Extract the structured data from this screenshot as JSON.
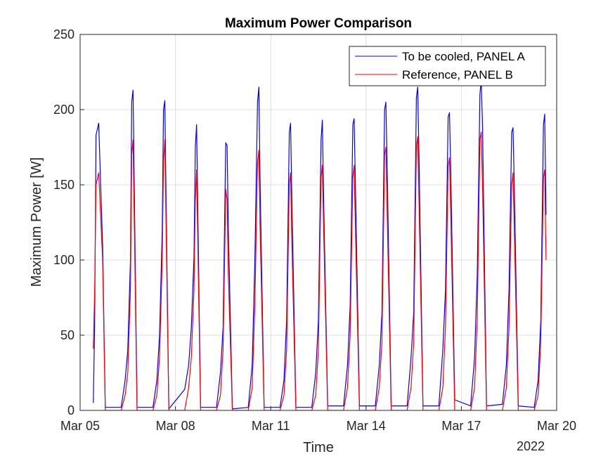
{
  "chart_data": {
    "type": "line",
    "title": "Maximum Power Comparison",
    "xlabel": "Time",
    "ylabel": "Maximum Power [W]",
    "x_axis_year": "2022",
    "xlim": [
      "2022-03-05",
      "2022-03-20"
    ],
    "ylim": [
      0,
      250
    ],
    "x_ticks": [
      {
        "date": "2022-03-05",
        "label": "Mar 05"
      },
      {
        "date": "2022-03-08",
        "label": "Mar 08"
      },
      {
        "date": "2022-03-11",
        "label": "Mar 11"
      },
      {
        "date": "2022-03-14",
        "label": "Mar 14"
      },
      {
        "date": "2022-03-17",
        "label": "Mar 17"
      },
      {
        "date": "2022-03-20",
        "label": "Mar 20"
      }
    ],
    "y_ticks": [
      0,
      50,
      100,
      150,
      200,
      250
    ],
    "grid": true,
    "legend_position": "top-right",
    "series": [
      {
        "name": "To be cooled, PANEL A",
        "color": "#0000ff",
        "points": [
          [
            "2022-03-05 10:00",
            5
          ],
          [
            "2022-03-05 11:00",
            60
          ],
          [
            "2022-03-05 12:00",
            183
          ],
          [
            "2022-03-05 14:00",
            191
          ],
          [
            "2022-03-05 17:00",
            110
          ],
          [
            "2022-03-05 19:00",
            2
          ],
          [
            "2022-03-06 07:00",
            2
          ],
          [
            "2022-03-06 10:00",
            20
          ],
          [
            "2022-03-06 12:00",
            40
          ],
          [
            "2022-03-06 14:00",
            100
          ],
          [
            "2022-03-06 15:00",
            205
          ],
          [
            "2022-03-06 16:00",
            213
          ],
          [
            "2022-03-06 19:00",
            2
          ],
          [
            "2022-03-07 07:00",
            2
          ],
          [
            "2022-03-07 10:00",
            20
          ],
          [
            "2022-03-07 12:00",
            50
          ],
          [
            "2022-03-07 14:00",
            120
          ],
          [
            "2022-03-07 15:00",
            200
          ],
          [
            "2022-03-07 16:00",
            206
          ],
          [
            "2022-03-07 19:00",
            1
          ],
          [
            "2022-03-08 07:00",
            14
          ],
          [
            "2022-03-08 10:00",
            30
          ],
          [
            "2022-03-08 12:00",
            55
          ],
          [
            "2022-03-08 14:00",
            102
          ],
          [
            "2022-03-08 15:00",
            175
          ],
          [
            "2022-03-08 16:00",
            190
          ],
          [
            "2022-03-08 19:00",
            2
          ],
          [
            "2022-03-09 07:00",
            2
          ],
          [
            "2022-03-09 10:00",
            25
          ],
          [
            "2022-03-09 12:00",
            55
          ],
          [
            "2022-03-09 14:00",
            178
          ],
          [
            "2022-03-09 15:00",
            176
          ],
          [
            "2022-03-09 16:00",
            120
          ],
          [
            "2022-03-09 19:00",
            1
          ],
          [
            "2022-03-10 07:00",
            2
          ],
          [
            "2022-03-10 10:00",
            30
          ],
          [
            "2022-03-10 12:00",
            100
          ],
          [
            "2022-03-10 14:00",
            205
          ],
          [
            "2022-03-10 15:00",
            215
          ],
          [
            "2022-03-10 16:00",
            150
          ],
          [
            "2022-03-10 19:00",
            2
          ],
          [
            "2022-03-11 07:00",
            2
          ],
          [
            "2022-03-11 10:00",
            20
          ],
          [
            "2022-03-11 12:00",
            60
          ],
          [
            "2022-03-11 14:00",
            185
          ],
          [
            "2022-03-11 15:00",
            191
          ],
          [
            "2022-03-11 16:00",
            140
          ],
          [
            "2022-03-11 19:00",
            2
          ],
          [
            "2022-03-12 07:00",
            2
          ],
          [
            "2022-03-12 10:00",
            25
          ],
          [
            "2022-03-12 12:00",
            60
          ],
          [
            "2022-03-12 14:00",
            180
          ],
          [
            "2022-03-12 15:00",
            193
          ],
          [
            "2022-03-12 16:00",
            140
          ],
          [
            "2022-03-12 19:00",
            3
          ],
          [
            "2022-03-13 07:00",
            3
          ],
          [
            "2022-03-13 10:00",
            30
          ],
          [
            "2022-03-13 12:00",
            70
          ],
          [
            "2022-03-13 14:00",
            190
          ],
          [
            "2022-03-13 15:00",
            194
          ],
          [
            "2022-03-13 16:00",
            150
          ],
          [
            "2022-03-13 19:00",
            3
          ],
          [
            "2022-03-14 07:00",
            3
          ],
          [
            "2022-03-14 10:00",
            30
          ],
          [
            "2022-03-14 12:00",
            65
          ],
          [
            "2022-03-14 14:00",
            200
          ],
          [
            "2022-03-14 15:00",
            205
          ],
          [
            "2022-03-14 16:00",
            160
          ],
          [
            "2022-03-14 19:00",
            3
          ],
          [
            "2022-03-15 07:00",
            3
          ],
          [
            "2022-03-15 10:00",
            35
          ],
          [
            "2022-03-15 12:00",
            65
          ],
          [
            "2022-03-15 14:00",
            208
          ],
          [
            "2022-03-15 15:00",
            215
          ],
          [
            "2022-03-15 16:00",
            170
          ],
          [
            "2022-03-15 19:00",
            3
          ],
          [
            "2022-03-16 07:00",
            3
          ],
          [
            "2022-03-16 10:00",
            40
          ],
          [
            "2022-03-16 12:00",
            80
          ],
          [
            "2022-03-16 14:00",
            195
          ],
          [
            "2022-03-16 15:00",
            198
          ],
          [
            "2022-03-16 16:00",
            160
          ],
          [
            "2022-03-16 19:00",
            7
          ],
          [
            "2022-03-17 07:00",
            3
          ],
          [
            "2022-03-17 10:00",
            35
          ],
          [
            "2022-03-17 12:00",
            90
          ],
          [
            "2022-03-17 14:00",
            210
          ],
          [
            "2022-03-17 15:00",
            220
          ],
          [
            "2022-03-17 16:00",
            190
          ],
          [
            "2022-03-17 19:00",
            3
          ],
          [
            "2022-03-18 07:00",
            4
          ],
          [
            "2022-03-18 10:00",
            30
          ],
          [
            "2022-03-18 12:00",
            80
          ],
          [
            "2022-03-18 14:00",
            185
          ],
          [
            "2022-03-18 15:00",
            188
          ],
          [
            "2022-03-18 16:00",
            150
          ],
          [
            "2022-03-18 19:00",
            3
          ],
          [
            "2022-03-19 07:00",
            2
          ],
          [
            "2022-03-19 10:00",
            20
          ],
          [
            "2022-03-19 12:00",
            60
          ],
          [
            "2022-03-19 14:00",
            190
          ],
          [
            "2022-03-19 15:00",
            197
          ],
          [
            "2022-03-19 16:00",
            130
          ]
        ]
      },
      {
        "name": "Reference, PANEL B",
        "color": "#ff0000",
        "points": [
          [
            "2022-03-05 10:00",
            41
          ],
          [
            "2022-03-05 11:00",
            80
          ],
          [
            "2022-03-05 12:00",
            150
          ],
          [
            "2022-03-05 14:00",
            158
          ],
          [
            "2022-03-05 17:00",
            100
          ],
          [
            "2022-03-05 19:00",
            0
          ],
          [
            "2022-03-06 07:00",
            0
          ],
          [
            "2022-03-06 10:00",
            10
          ],
          [
            "2022-03-06 12:00",
            25
          ],
          [
            "2022-03-06 14:00",
            80
          ],
          [
            "2022-03-06 15:00",
            170
          ],
          [
            "2022-03-06 16:00",
            180
          ],
          [
            "2022-03-06 19:00",
            0
          ],
          [
            "2022-03-07 07:00",
            0
          ],
          [
            "2022-03-07 10:00",
            10
          ],
          [
            "2022-03-07 12:00",
            35
          ],
          [
            "2022-03-07 14:00",
            100
          ],
          [
            "2022-03-07 15:00",
            165
          ],
          [
            "2022-03-07 16:00",
            180
          ],
          [
            "2022-03-07 19:00",
            0
          ],
          [
            "2022-03-08 07:00",
            0
          ],
          [
            "2022-03-08 10:00",
            15
          ],
          [
            "2022-03-08 12:00",
            35
          ],
          [
            "2022-03-08 14:00",
            80
          ],
          [
            "2022-03-08 15:00",
            140
          ],
          [
            "2022-03-08 16:00",
            160
          ],
          [
            "2022-03-08 19:00",
            0
          ],
          [
            "2022-03-09 07:00",
            0
          ],
          [
            "2022-03-09 10:00",
            10
          ],
          [
            "2022-03-09 12:00",
            40
          ],
          [
            "2022-03-09 14:00",
            147
          ],
          [
            "2022-03-09 15:00",
            140
          ],
          [
            "2022-03-09 16:00",
            90
          ],
          [
            "2022-03-09 19:00",
            0
          ],
          [
            "2022-03-10 07:00",
            0
          ],
          [
            "2022-03-10 10:00",
            15
          ],
          [
            "2022-03-10 12:00",
            70
          ],
          [
            "2022-03-10 14:00",
            165
          ],
          [
            "2022-03-10 15:00",
            173
          ],
          [
            "2022-03-10 16:00",
            120
          ],
          [
            "2022-03-10 19:00",
            0
          ],
          [
            "2022-03-11 07:00",
            0
          ],
          [
            "2022-03-11 10:00",
            10
          ],
          [
            "2022-03-11 12:00",
            40
          ],
          [
            "2022-03-11 14:00",
            150
          ],
          [
            "2022-03-11 15:00",
            158
          ],
          [
            "2022-03-11 16:00",
            110
          ],
          [
            "2022-03-11 19:00",
            0
          ],
          [
            "2022-03-12 07:00",
            0
          ],
          [
            "2022-03-12 10:00",
            10
          ],
          [
            "2022-03-12 12:00",
            40
          ],
          [
            "2022-03-12 14:00",
            155
          ],
          [
            "2022-03-12 15:00",
            163
          ],
          [
            "2022-03-12 16:00",
            120
          ],
          [
            "2022-03-12 19:00",
            0
          ],
          [
            "2022-03-13 07:00",
            0
          ],
          [
            "2022-03-13 10:00",
            15
          ],
          [
            "2022-03-13 12:00",
            50
          ],
          [
            "2022-03-13 14:00",
            155
          ],
          [
            "2022-03-13 15:00",
            163
          ],
          [
            "2022-03-13 16:00",
            120
          ],
          [
            "2022-03-13 19:00",
            0
          ],
          [
            "2022-03-14 07:00",
            0
          ],
          [
            "2022-03-14 10:00",
            15
          ],
          [
            "2022-03-14 12:00",
            45
          ],
          [
            "2022-03-14 14:00",
            170
          ],
          [
            "2022-03-14 15:00",
            175
          ],
          [
            "2022-03-14 16:00",
            130
          ],
          [
            "2022-03-14 19:00",
            0
          ],
          [
            "2022-03-15 07:00",
            0
          ],
          [
            "2022-03-15 10:00",
            15
          ],
          [
            "2022-03-15 12:00",
            45
          ],
          [
            "2022-03-15 14:00",
            175
          ],
          [
            "2022-03-15 15:00",
            182
          ],
          [
            "2022-03-15 16:00",
            140
          ],
          [
            "2022-03-15 19:00",
            0
          ],
          [
            "2022-03-16 07:00",
            0
          ],
          [
            "2022-03-16 10:00",
            15
          ],
          [
            "2022-03-16 12:00",
            55
          ],
          [
            "2022-03-16 14:00",
            162
          ],
          [
            "2022-03-16 15:00",
            168
          ],
          [
            "2022-03-16 16:00",
            130
          ],
          [
            "2022-03-16 19:00",
            0
          ],
          [
            "2022-03-17 07:00",
            0
          ],
          [
            "2022-03-17 10:00",
            15
          ],
          [
            "2022-03-17 12:00",
            60
          ],
          [
            "2022-03-17 14:00",
            180
          ],
          [
            "2022-03-17 15:00",
            185
          ],
          [
            "2022-03-17 16:00",
            150
          ],
          [
            "2022-03-17 19:00",
            0
          ],
          [
            "2022-03-18 07:00",
            0
          ],
          [
            "2022-03-18 10:00",
            15
          ],
          [
            "2022-03-18 12:00",
            55
          ],
          [
            "2022-03-18 14:00",
            150
          ],
          [
            "2022-03-18 15:00",
            158
          ],
          [
            "2022-03-18 16:00",
            120
          ],
          [
            "2022-03-18 19:00",
            0
          ],
          [
            "2022-03-19 07:00",
            0
          ],
          [
            "2022-03-19 10:00",
            10
          ],
          [
            "2022-03-19 12:00",
            45
          ],
          [
            "2022-03-19 14:00",
            155
          ],
          [
            "2022-03-19 15:00",
            160
          ],
          [
            "2022-03-19 16:00",
            100
          ]
        ]
      }
    ]
  }
}
